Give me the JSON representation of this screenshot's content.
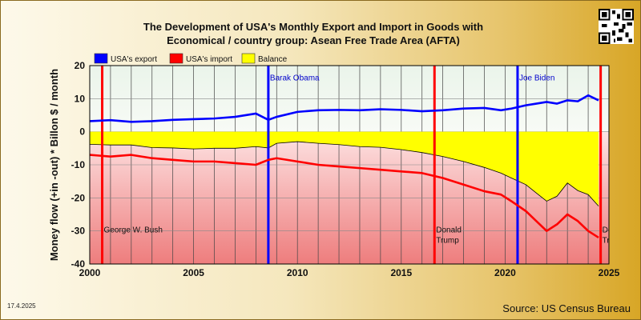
{
  "chart_data": {
    "type": "line",
    "title": "The Development of USA's Monthly Export and Import in Goods with Economical / country group: Asean Free Trade Area (AFTA)",
    "title_line1": "The Development of USA's Monthly Export and Import in Goods with",
    "title_line2": "Economical / country group: Asean Free Trade Area (AFTA)",
    "ylabel": "Money flow (+in -out) * Billon $ / month",
    "xlim": [
      2000,
      2025
    ],
    "ylim": [
      -40,
      20
    ],
    "xticks": [
      2000,
      2005,
      2010,
      2015,
      2020,
      2025
    ],
    "yticks": [
      20,
      10,
      0,
      -10,
      -20,
      -30,
      -40
    ],
    "legend": {
      "placement": "top",
      "items": [
        {
          "label": "USA's export",
          "color": "#0000ff"
        },
        {
          "label": "USA's import",
          "color": "#ff0000"
        },
        {
          "label": "Balance",
          "color": "#ffff00"
        }
      ]
    },
    "series": [
      {
        "name": "USA's export",
        "color": "#0000ff",
        "x": [
          2000.0,
          2001.0,
          2002.0,
          2003.0,
          2004.0,
          2005.0,
          2006.0,
          2007.0,
          2008.0,
          2008.6,
          2009.0,
          2010.0,
          2011.0,
          2012.0,
          2013.0,
          2014.0,
          2015.0,
          2016.0,
          2017.0,
          2018.0,
          2019.0,
          2019.8,
          2020.3,
          2021.0,
          2021.5,
          2022.0,
          2022.5,
          2023.0,
          2023.5,
          2024.0,
          2024.5
        ],
        "y": [
          3.2,
          3.5,
          3.0,
          3.2,
          3.6,
          3.8,
          4.0,
          4.5,
          5.5,
          3.6,
          4.5,
          6.0,
          6.5,
          6.6,
          6.5,
          6.8,
          6.6,
          6.2,
          6.5,
          7.0,
          7.2,
          6.5,
          7.0,
          8.0,
          8.5,
          9.0,
          8.5,
          9.5,
          9.2,
          11.0,
          9.5
        ]
      },
      {
        "name": "USA's import",
        "color": "#ff0000",
        "x": [
          2000.0,
          2001.0,
          2002.0,
          2003.0,
          2004.0,
          2005.0,
          2006.0,
          2007.0,
          2008.0,
          2008.6,
          2009.0,
          2010.0,
          2011.0,
          2012.0,
          2013.0,
          2014.0,
          2015.0,
          2016.0,
          2017.0,
          2018.0,
          2019.0,
          2019.8,
          2020.3,
          2021.0,
          2021.5,
          2022.0,
          2022.5,
          2023.0,
          2023.5,
          2024.0,
          2024.5
        ],
        "y": [
          -7.0,
          -7.5,
          -7.0,
          -8.0,
          -8.5,
          -9.0,
          -9.0,
          -9.5,
          -10.0,
          -8.5,
          -8.0,
          -9.0,
          -10.0,
          -10.5,
          -11.0,
          -11.5,
          -12.0,
          -12.5,
          -14.0,
          -16.0,
          -18.0,
          -19.0,
          -21.0,
          -24.0,
          -27.0,
          -30.0,
          -28.0,
          -25.0,
          -27.0,
          -30.0,
          -32.0
        ]
      },
      {
        "name": "Balance",
        "color": "#ffff00",
        "x": [
          2000.0,
          2001.0,
          2002.0,
          2003.0,
          2004.0,
          2005.0,
          2006.0,
          2007.0,
          2008.0,
          2008.6,
          2009.0,
          2010.0,
          2011.0,
          2012.0,
          2013.0,
          2014.0,
          2015.0,
          2016.0,
          2017.0,
          2018.0,
          2019.0,
          2019.8,
          2020.3,
          2021.0,
          2021.5,
          2022.0,
          2022.5,
          2023.0,
          2023.5,
          2024.0,
          2024.5
        ],
        "y": [
          -3.8,
          -4.0,
          -4.0,
          -4.8,
          -4.9,
          -5.2,
          -5.0,
          -5.0,
          -4.5,
          -4.9,
          -3.5,
          -3.0,
          -3.5,
          -3.9,
          -4.5,
          -4.7,
          -5.4,
          -6.3,
          -7.5,
          -9.0,
          -10.8,
          -12.5,
          -14.0,
          -16.0,
          -18.5,
          -21.0,
          -19.5,
          -15.5,
          -17.8,
          -19.0,
          -22.5
        ]
      }
    ],
    "presidents": [
      {
        "year": 2000.6,
        "name": "George W. Bush",
        "color": "#ff0000",
        "label_y": -30.5
      },
      {
        "year": 2008.6,
        "name": "Barak Obama",
        "color": "#0000ff",
        "label_y": 15.5
      },
      {
        "year": 2016.6,
        "name": "Donald Trump",
        "color": "#ff0000",
        "label_y": -30.5
      },
      {
        "year": 2020.6,
        "name": "Joe Biden",
        "color": "#0000ff",
        "label_y": 15.5
      },
      {
        "year": 2024.6,
        "name": "Donald Trump",
        "color": "#ff0000",
        "label_y": -30.5
      }
    ]
  },
  "footer": {
    "date": "17.4.2025",
    "source": "Source: US Census Bureau"
  }
}
